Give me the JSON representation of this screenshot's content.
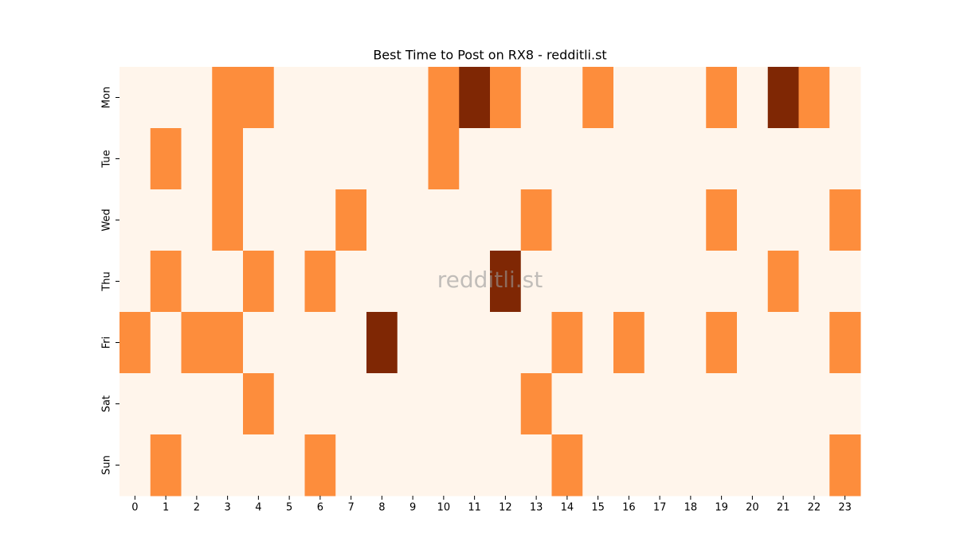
{
  "chart_data": {
    "type": "heatmap",
    "title": "Best Time to Post on RX8 - redditli.st",
    "watermark": "redditli.st",
    "x": [
      0,
      1,
      2,
      3,
      4,
      5,
      6,
      7,
      8,
      9,
      10,
      11,
      12,
      13,
      14,
      15,
      16,
      17,
      18,
      19,
      20,
      21,
      22,
      23
    ],
    "y": [
      "Mon",
      "Tue",
      "Wed",
      "Thu",
      "Fri",
      "Sat",
      "Sun"
    ],
    "values": [
      [
        0,
        0,
        0,
        1,
        1,
        0,
        0,
        0,
        0,
        0,
        1,
        2,
        1,
        0,
        0,
        1,
        0,
        0,
        0,
        1,
        0,
        2,
        1,
        0
      ],
      [
        0,
        1,
        0,
        1,
        0,
        0,
        0,
        0,
        0,
        0,
        1,
        0,
        0,
        0,
        0,
        0,
        0,
        0,
        0,
        0,
        0,
        0,
        0,
        0
      ],
      [
        0,
        0,
        0,
        1,
        0,
        0,
        0,
        1,
        0,
        0,
        0,
        0,
        0,
        1,
        0,
        0,
        0,
        0,
        0,
        1,
        0,
        0,
        0,
        1
      ],
      [
        0,
        1,
        0,
        0,
        1,
        0,
        1,
        0,
        0,
        0,
        0,
        0,
        2,
        0,
        0,
        0,
        0,
        0,
        0,
        0,
        0,
        1,
        0,
        0
      ],
      [
        1,
        0,
        1,
        1,
        0,
        0,
        0,
        0,
        2,
        0,
        0,
        0,
        0,
        0,
        1,
        0,
        1,
        0,
        0,
        1,
        0,
        0,
        0,
        1
      ],
      [
        0,
        0,
        0,
        0,
        1,
        0,
        0,
        0,
        0,
        0,
        0,
        0,
        0,
        1,
        0,
        0,
        0,
        0,
        0,
        0,
        0,
        0,
        0,
        0
      ],
      [
        0,
        1,
        0,
        0,
        0,
        0,
        1,
        0,
        0,
        0,
        0,
        0,
        0,
        0,
        1,
        0,
        0,
        0,
        0,
        0,
        0,
        0,
        0,
        1
      ]
    ],
    "vmin": 0,
    "vmax": 2,
    "colorscale": [
      "#fff5eb",
      "#fd8d3c",
      "#7f2704"
    ]
  }
}
